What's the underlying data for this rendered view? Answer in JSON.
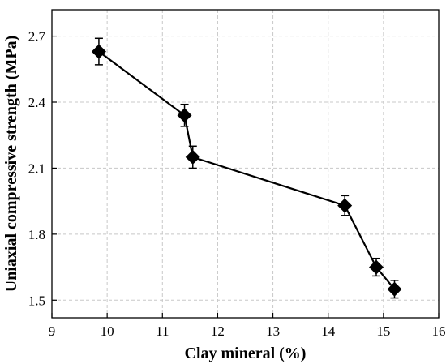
{
  "chart_data": {
    "type": "line",
    "title": "",
    "xlabel": "Clay mineral (%)",
    "ylabel": "Uniaxial compressive strength (MPa)",
    "xlim": [
      9,
      16
    ],
    "ylim": [
      1.42,
      2.82
    ],
    "xticks": [
      9,
      10,
      11,
      12,
      13,
      14,
      15,
      16
    ],
    "yticks": [
      1.5,
      1.8,
      2.1,
      2.4,
      2.7
    ],
    "grid": true,
    "legend": "none",
    "marker": "diamond",
    "color": "#000000",
    "series": [
      {
        "x": [
          9.85,
          11.4,
          11.55,
          14.3,
          14.87,
          15.2
        ],
        "y": [
          2.63,
          2.34,
          2.15,
          1.93,
          1.65,
          1.55
        ],
        "error": [
          0.06,
          0.05,
          0.05,
          0.045,
          0.04,
          0.04
        ]
      }
    ]
  }
}
